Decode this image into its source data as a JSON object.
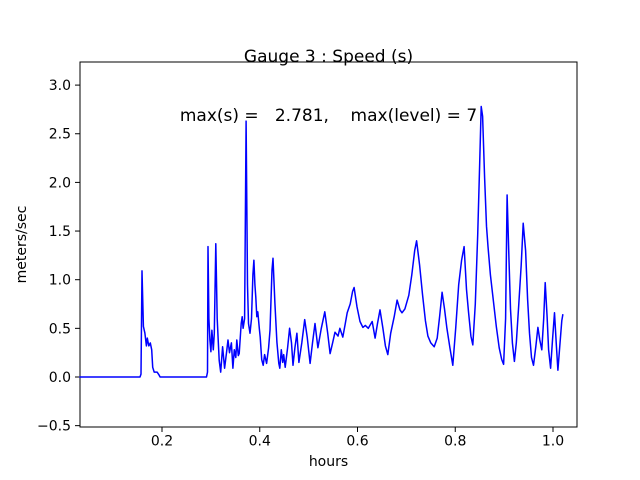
{
  "chart_data": {
    "type": "line",
    "title": "Gauge 3 : Speed (s)",
    "subtitle": "max(s) =   2.781,    max(level) = 7",
    "xlabel": "hours",
    "ylabel": "meters/sec",
    "max_s": 2.781,
    "max_level": 7,
    "line_color": "#0000ff",
    "axis_color": "#000000",
    "background_color": "#ffffff",
    "grid": false,
    "legend": "none",
    "xlim": [
      0.0322,
      1.0491
    ],
    "ylim": [
      -0.5139,
      3.2374
    ],
    "x_ticks": [
      {
        "value": 0.2,
        "label": "0.2"
      },
      {
        "value": 0.4,
        "label": "0.4"
      },
      {
        "value": 0.6,
        "label": "0.6"
      },
      {
        "value": 0.8,
        "label": "0.8"
      },
      {
        "value": 1.0,
        "label": "1.0"
      }
    ],
    "y_ticks": [
      {
        "value": -0.5,
        "label": "−0.5"
      },
      {
        "value": 0.0,
        "label": "0.0"
      },
      {
        "value": 0.5,
        "label": "0.5"
      },
      {
        "value": 1.0,
        "label": "1.0"
      },
      {
        "value": 1.5,
        "label": "1.5"
      },
      {
        "value": 2.0,
        "label": "2.0"
      },
      {
        "value": 2.5,
        "label": "2.5"
      },
      {
        "value": 3.0,
        "label": "3.0"
      }
    ],
    "series": [
      {
        "name": "speed",
        "points": [
          [
            0.032,
            0.0
          ],
          [
            0.09,
            0.0
          ],
          [
            0.155,
            0.0
          ],
          [
            0.157,
            0.03
          ],
          [
            0.159,
            1.09
          ],
          [
            0.162,
            0.52
          ],
          [
            0.165,
            0.45
          ],
          [
            0.168,
            0.32
          ],
          [
            0.17,
            0.4
          ],
          [
            0.173,
            0.32
          ],
          [
            0.176,
            0.35
          ],
          [
            0.179,
            0.28
          ],
          [
            0.181,
            0.1
          ],
          [
            0.184,
            0.05
          ],
          [
            0.19,
            0.05
          ],
          [
            0.194,
            0.02
          ],
          [
            0.196,
            0.0
          ],
          [
            0.24,
            0.0
          ],
          [
            0.291,
            0.0
          ],
          [
            0.293,
            0.05
          ],
          [
            0.294,
            1.34
          ],
          [
            0.296,
            0.6
          ],
          [
            0.298,
            0.38
          ],
          [
            0.3,
            0.26
          ],
          [
            0.302,
            0.48
          ],
          [
            0.305,
            0.28
          ],
          [
            0.307,
            0.45
          ],
          [
            0.31,
            1.37
          ],
          [
            0.313,
            0.6
          ],
          [
            0.315,
            0.38
          ],
          [
            0.317,
            0.17
          ],
          [
            0.32,
            0.05
          ],
          [
            0.324,
            0.31
          ],
          [
            0.328,
            0.09
          ],
          [
            0.332,
            0.25
          ],
          [
            0.335,
            0.38
          ],
          [
            0.338,
            0.25
          ],
          [
            0.342,
            0.35
          ],
          [
            0.345,
            0.09
          ],
          [
            0.348,
            0.28
          ],
          [
            0.351,
            0.2
          ],
          [
            0.353,
            0.38
          ],
          [
            0.356,
            0.22
          ],
          [
            0.358,
            0.24
          ],
          [
            0.362,
            0.55
          ],
          [
            0.364,
            0.62
          ],
          [
            0.366,
            0.5
          ],
          [
            0.369,
            0.6
          ],
          [
            0.372,
            2.63
          ],
          [
            0.375,
            0.95
          ],
          [
            0.377,
            0.55
          ],
          [
            0.38,
            0.45
          ],
          [
            0.383,
            0.6
          ],
          [
            0.386,
            1.05
          ],
          [
            0.388,
            1.2
          ],
          [
            0.39,
            0.95
          ],
          [
            0.392,
            0.82
          ],
          [
            0.394,
            0.62
          ],
          [
            0.396,
            0.67
          ],
          [
            0.399,
            0.5
          ],
          [
            0.401,
            0.41
          ],
          [
            0.404,
            0.18
          ],
          [
            0.407,
            0.12
          ],
          [
            0.41,
            0.23
          ],
          [
            0.414,
            0.14
          ],
          [
            0.418,
            0.3
          ],
          [
            0.421,
            0.48
          ],
          [
            0.425,
            1.1
          ],
          [
            0.427,
            1.22
          ],
          [
            0.431,
            0.76
          ],
          [
            0.435,
            0.36
          ],
          [
            0.439,
            0.14
          ],
          [
            0.441,
            0.09
          ],
          [
            0.444,
            0.28
          ],
          [
            0.447,
            0.15
          ],
          [
            0.449,
            0.23
          ],
          [
            0.452,
            0.1
          ],
          [
            0.457,
            0.3
          ],
          [
            0.461,
            0.5
          ],
          [
            0.465,
            0.35
          ],
          [
            0.468,
            0.12
          ],
          [
            0.472,
            0.3
          ],
          [
            0.476,
            0.45
          ],
          [
            0.48,
            0.15
          ],
          [
            0.486,
            0.35
          ],
          [
            0.492,
            0.59
          ],
          [
            0.497,
            0.41
          ],
          [
            0.503,
            0.14
          ],
          [
            0.508,
            0.35
          ],
          [
            0.513,
            0.55
          ],
          [
            0.519,
            0.3
          ],
          [
            0.526,
            0.5
          ],
          [
            0.533,
            0.67
          ],
          [
            0.539,
            0.45
          ],
          [
            0.544,
            0.24
          ],
          [
            0.549,
            0.35
          ],
          [
            0.554,
            0.46
          ],
          [
            0.56,
            0.42
          ],
          [
            0.564,
            0.5
          ],
          [
            0.57,
            0.41
          ],
          [
            0.575,
            0.55
          ],
          [
            0.579,
            0.66
          ],
          [
            0.585,
            0.75
          ],
          [
            0.59,
            0.88
          ],
          [
            0.593,
            0.92
          ],
          [
            0.599,
            0.72
          ],
          [
            0.605,
            0.57
          ],
          [
            0.611,
            0.51
          ],
          [
            0.616,
            0.53
          ],
          [
            0.622,
            0.5
          ],
          [
            0.63,
            0.57
          ],
          [
            0.636,
            0.4
          ],
          [
            0.641,
            0.55
          ],
          [
            0.646,
            0.69
          ],
          [
            0.652,
            0.5
          ],
          [
            0.657,
            0.32
          ],
          [
            0.662,
            0.23
          ],
          [
            0.668,
            0.45
          ],
          [
            0.675,
            0.62
          ],
          [
            0.681,
            0.79
          ],
          [
            0.687,
            0.69
          ],
          [
            0.691,
            0.66
          ],
          [
            0.697,
            0.7
          ],
          [
            0.705,
            0.84
          ],
          [
            0.711,
            1.05
          ],
          [
            0.717,
            1.3
          ],
          [
            0.721,
            1.4
          ],
          [
            0.727,
            1.15
          ],
          [
            0.733,
            0.85
          ],
          [
            0.739,
            0.58
          ],
          [
            0.744,
            0.42
          ],
          [
            0.75,
            0.35
          ],
          [
            0.757,
            0.31
          ],
          [
            0.763,
            0.4
          ],
          [
            0.768,
            0.62
          ],
          [
            0.773,
            0.87
          ],
          [
            0.778,
            0.7
          ],
          [
            0.783,
            0.5
          ],
          [
            0.789,
            0.3
          ],
          [
            0.795,
            0.12
          ],
          [
            0.801,
            0.5
          ],
          [
            0.807,
            0.95
          ],
          [
            0.813,
            1.2
          ],
          [
            0.818,
            1.34
          ],
          [
            0.823,
            0.9
          ],
          [
            0.827,
            0.67
          ],
          [
            0.832,
            0.42
          ],
          [
            0.836,
            0.33
          ],
          [
            0.841,
            0.75
          ],
          [
            0.846,
            1.46
          ],
          [
            0.85,
            2.2
          ],
          [
            0.853,
            2.78
          ],
          [
            0.856,
            2.68
          ],
          [
            0.86,
            2.05
          ],
          [
            0.864,
            1.55
          ],
          [
            0.867,
            1.34
          ],
          [
            0.872,
            1.05
          ],
          [
            0.878,
            0.78
          ],
          [
            0.884,
            0.52
          ],
          [
            0.89,
            0.3
          ],
          [
            0.895,
            0.18
          ],
          [
            0.899,
            0.13
          ],
          [
            0.903,
            0.6
          ],
          [
            0.906,
            1.87
          ],
          [
            0.91,
            1.2
          ],
          [
            0.913,
            0.7
          ],
          [
            0.917,
            0.35
          ],
          [
            0.921,
            0.16
          ],
          [
            0.925,
            0.35
          ],
          [
            0.93,
            0.75
          ],
          [
            0.935,
            1.15
          ],
          [
            0.939,
            1.58
          ],
          [
            0.944,
            1.3
          ],
          [
            0.948,
            0.8
          ],
          [
            0.952,
            0.45
          ],
          [
            0.956,
            0.2
          ],
          [
            0.96,
            0.12
          ],
          [
            0.965,
            0.32
          ],
          [
            0.969,
            0.51
          ],
          [
            0.973,
            0.38
          ],
          [
            0.977,
            0.28
          ],
          [
            0.981,
            0.6
          ],
          [
            0.984,
            0.97
          ],
          [
            0.988,
            0.62
          ],
          [
            0.991,
            0.28
          ],
          [
            0.995,
            0.09
          ],
          [
            0.999,
            0.38
          ],
          [
            1.003,
            0.66
          ],
          [
            1.007,
            0.32
          ],
          [
            1.01,
            0.07
          ],
          [
            1.014,
            0.32
          ],
          [
            1.018,
            0.58
          ],
          [
            1.02,
            0.64
          ]
        ]
      }
    ]
  }
}
